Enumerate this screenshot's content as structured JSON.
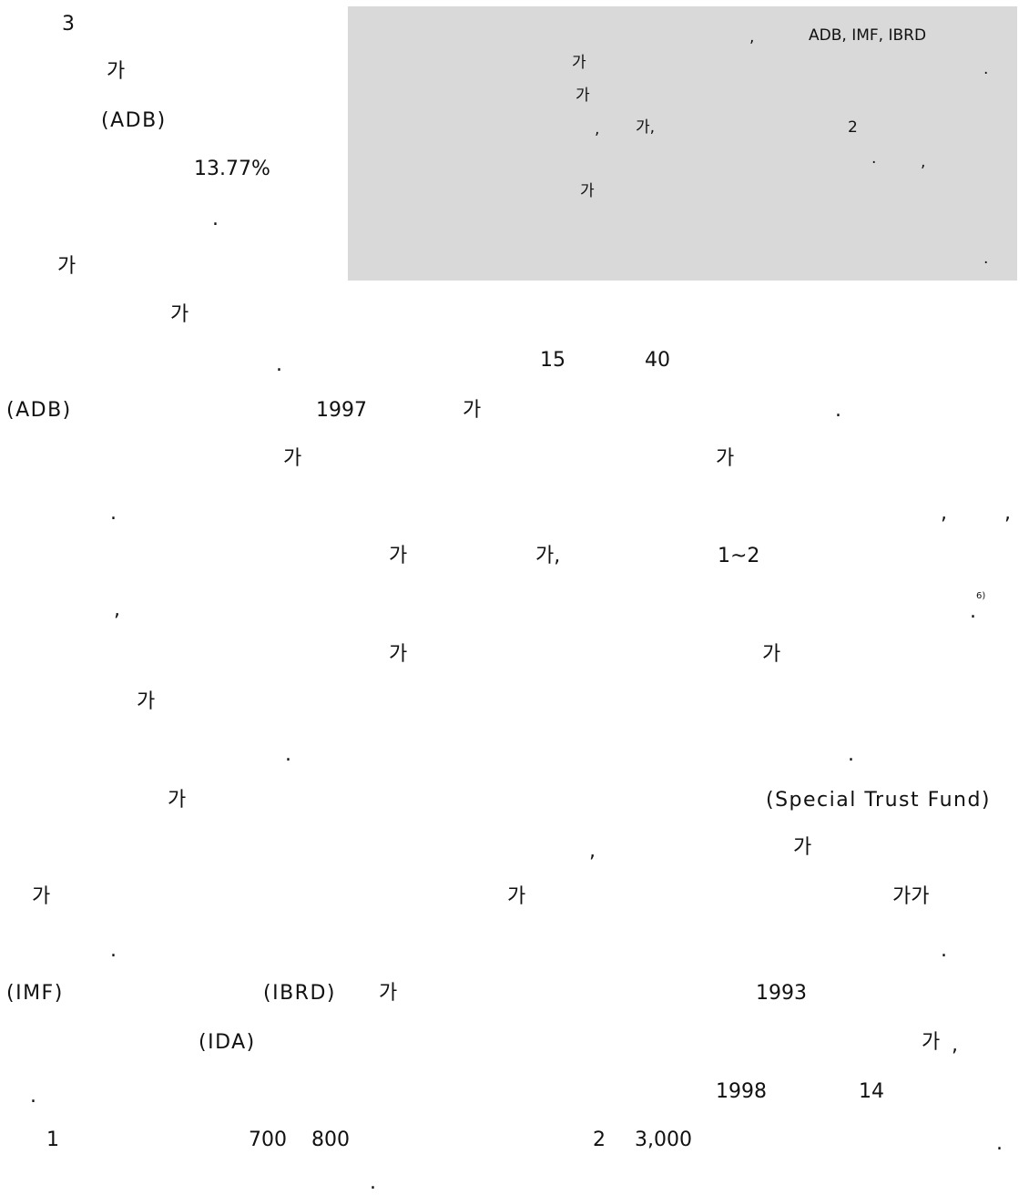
{
  "left_column": {
    "l01": "3",
    "l02": "가",
    "l03": "(ADB)",
    "l04": "13.77%",
    "l05": ".",
    "l06": "가"
  },
  "note_box": {
    "n01": ",",
    "n02": "ADB, IMF, IBRD",
    "n03": "가",
    "n04": ".",
    "n05": "가",
    "n06": ",",
    "n07": "가,",
    "n08": "2",
    "n09": ".",
    "n10": ",",
    "n11": "가",
    "n12": "."
  },
  "body": {
    "b01": "가",
    "b02": ".",
    "b03": "15",
    "b04": "40",
    "b05": "(ADB)",
    "b06": "1997",
    "b07": "가",
    "b08": ".",
    "b09": "가",
    "b10": "가",
    "b11": ".",
    "b12": ",",
    "b13": ",",
    "b14": "가",
    "b15": "가,",
    "b16": "1~2",
    "b17": ",",
    "b18": ".",
    "b19": "6)",
    "b20": "가",
    "b21": "가",
    "b22": "가",
    "b23": ".",
    "b24": ".",
    "b25": "가",
    "b26": "(Special Trust Fund)",
    "b27": ",",
    "b28": "가",
    "b29": "가",
    "b30": "가",
    "b31": "가가",
    "b32": ".",
    "b33": ".",
    "b34": "(IMF)",
    "b35": "(IBRD)",
    "b36": "가",
    "b37": "1993",
    "b38": "(IDA)",
    "b39": "가",
    "b40": ",",
    "b41": ".",
    "b42": "1998",
    "b43": "14",
    "b44": "1",
    "b45": "700",
    "b46": "800",
    "b47": "2",
    "b48": "3,000",
    "b49": ".",
    "b50": "."
  }
}
